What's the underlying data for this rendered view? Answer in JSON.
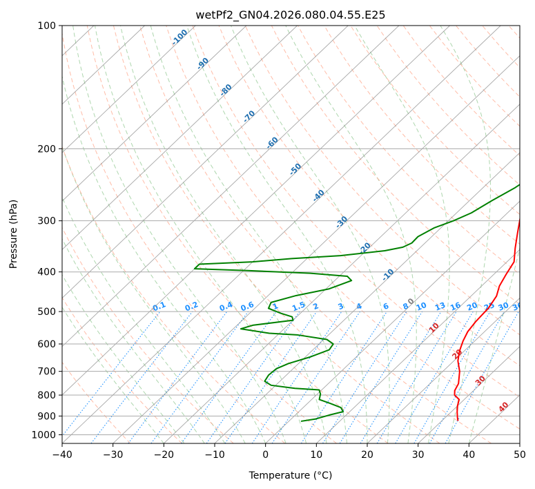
{
  "chart_data": {
    "type": "line",
    "title": "wetPf2_GN04.2026.080.04.55.E25",
    "xlabel": "Temperature (°C)",
    "ylabel": "Pressure (hPa)",
    "xlim": [
      -40,
      50
    ],
    "ylim": [
      1050,
      100
    ],
    "x_ticks": [
      -40,
      -30,
      -20,
      -10,
      0,
      10,
      20,
      30,
      40,
      50
    ],
    "x_tick_labels": [
      "−40",
      "−30",
      "−20",
      "−10",
      "0",
      "10",
      "20",
      "30",
      "40",
      "50"
    ],
    "y_ticks": [
      100,
      200,
      300,
      400,
      500,
      600,
      700,
      800,
      900,
      1000
    ],
    "y_tick_labels": [
      "100",
      "200",
      "300",
      "400",
      "500",
      "600",
      "700",
      "800",
      "900",
      "1000"
    ],
    "skew": 1.05,
    "grid": true,
    "series": [
      {
        "name": "Temperature",
        "color": "#ff0000",
        "points": [
          [
            33.2,
            925
          ],
          [
            32.5,
            910
          ],
          [
            31.2,
            880
          ],
          [
            30,
            850
          ],
          [
            29,
            820
          ],
          [
            27.2,
            800
          ],
          [
            26.3,
            780
          ],
          [
            25.6,
            750
          ],
          [
            23.3,
            700
          ],
          [
            20.8,
            660
          ],
          [
            19.1,
            625
          ],
          [
            17.7,
            590
          ],
          [
            16.7,
            560
          ],
          [
            16.2,
            530
          ],
          [
            15.9,
            490
          ],
          [
            15,
            458
          ],
          [
            13.5,
            433
          ],
          [
            12.4,
            405
          ],
          [
            11.4,
            378
          ],
          [
            8.8,
            350
          ],
          [
            6,
            320
          ],
          [
            3,
            290
          ],
          [
            -0.2,
            262
          ],
          [
            -3.1,
            240
          ],
          [
            -5.3,
            221
          ],
          [
            -6.5,
            203
          ],
          [
            -7.6,
            187
          ],
          [
            -7.8,
            175
          ],
          [
            -6.5,
            160
          ],
          [
            -4.7,
            150
          ],
          [
            -2.1,
            137
          ],
          [
            -0.2,
            128
          ],
          [
            0.8,
            121
          ],
          [
            1.6,
            115
          ],
          [
            2.5,
            109
          ],
          [
            3.3,
            104
          ],
          [
            3.9,
            100
          ]
        ]
      },
      {
        "name": "Dewpoint",
        "color": "#008000",
        "points": [
          [
            2.4,
            927
          ],
          [
            4.8,
            915
          ],
          [
            6.7,
            895
          ],
          [
            8.7,
            878
          ],
          [
            7.4,
            858
          ],
          [
            4.4,
            838
          ],
          [
            1.5,
            820
          ],
          [
            0.6,
            795
          ],
          [
            -0.5,
            777
          ],
          [
            -5.6,
            770
          ],
          [
            -10.9,
            757
          ],
          [
            -13,
            740
          ],
          [
            -13.5,
            715
          ],
          [
            -13.3,
            690
          ],
          [
            -12,
            670
          ],
          [
            -9,
            645
          ],
          [
            -6.8,
            620
          ],
          [
            -7.2,
            600
          ],
          [
            -9.4,
            585
          ],
          [
            -16.2,
            570
          ],
          [
            -22,
            565
          ],
          [
            -28.5,
            551
          ],
          [
            -26.9,
            540
          ],
          [
            -20,
            525
          ],
          [
            -20.9,
            515
          ],
          [
            -23.8,
            505
          ],
          [
            -27.3,
            491
          ],
          [
            -28,
            475
          ],
          [
            -24.5,
            457
          ],
          [
            -19.4,
            440
          ],
          [
            -16.7,
            420
          ],
          [
            -18.4,
            410
          ],
          [
            -26.3,
            403
          ],
          [
            -39.2,
            397
          ],
          [
            -50,
            393
          ],
          [
            -50,
            383
          ],
          [
            -40,
            378
          ],
          [
            -33,
            371
          ],
          [
            -24,
            365
          ],
          [
            -16.3,
            355
          ],
          [
            -13.5,
            348
          ],
          [
            -12.6,
            340
          ],
          [
            -12.7,
            328
          ],
          [
            -11.3,
            312
          ],
          [
            -9,
            300
          ],
          [
            -7.1,
            287
          ],
          [
            -5.6,
            268
          ],
          [
            -3.7,
            249
          ],
          [
            -2.8,
            235
          ],
          [
            -2.3,
            220
          ],
          [
            -2.2,
            205
          ],
          [
            -1.6,
            190
          ],
          [
            -1.2,
            180
          ],
          [
            -2.1,
            172
          ],
          [
            -3.2,
            167
          ],
          [
            -3.1,
            160
          ],
          [
            -1.5,
            150
          ],
          [
            -0.4,
            134
          ],
          [
            0.8,
            125
          ],
          [
            1.8,
            118
          ],
          [
            2.9,
            110
          ],
          [
            4.7,
            103
          ],
          [
            5.8,
            100
          ]
        ]
      }
    ],
    "isotherm_labels": {
      "dry_adiabats": [
        "-100",
        "-90",
        "-80",
        "-70",
        "-60",
        "-50",
        "-40",
        "-30",
        "-20",
        "-10",
        "0",
        "10",
        "20",
        "30",
        "40"
      ],
      "mixing_ratios": [
        "0.1",
        "0.2",
        "0.4",
        "0.6",
        "1",
        "1.5",
        "2",
        "3",
        "4",
        "6",
        "8",
        "10",
        "13",
        "16",
        "20",
        "25",
        "30",
        "36"
      ]
    },
    "colors": {
      "dry_adiabat": "#ffa589",
      "moist_adiabat": "#9fcf9f",
      "mixing_ratio": "#1e90ff",
      "isotherm": "#8a8a8a",
      "isobar": "#a9a9a9",
      "adiabat_label": "#1f6fb0",
      "warm_label": "#d62728",
      "zero_label": "#808080"
    }
  }
}
